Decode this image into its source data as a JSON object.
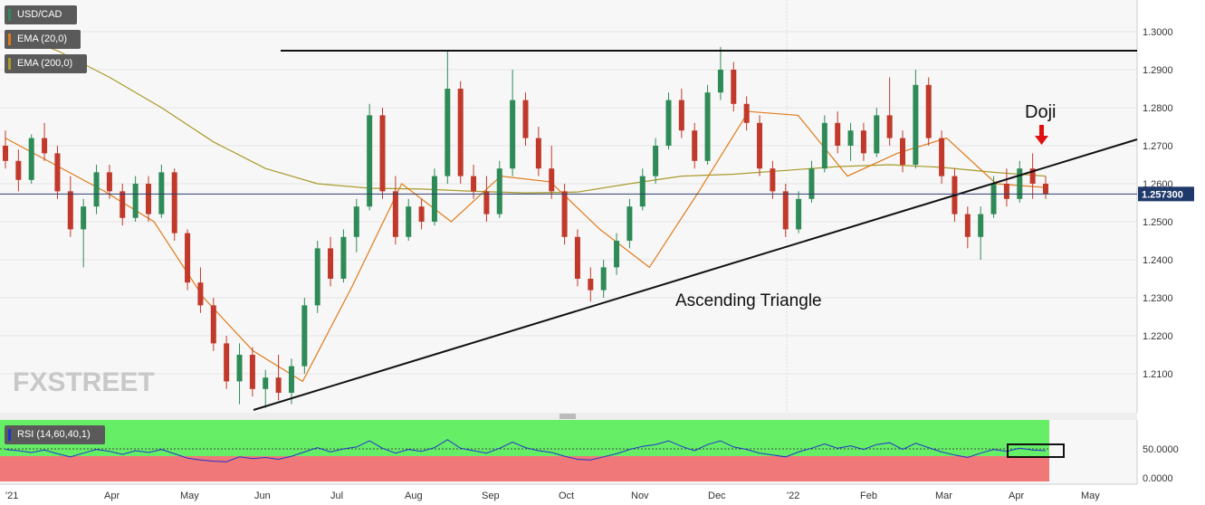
{
  "legend": {
    "symbol": "USD/CAD",
    "ema20": "EMA (20,0)",
    "ema200": "EMA (200,0)",
    "rsi": "RSI (14,60,40,1)"
  },
  "colors": {
    "up": "#2e8b57",
    "down": "#c0392b",
    "ema20": "#e07b1a",
    "ema200": "#a89b2a",
    "rsi_line": "#2233cc",
    "rsi_upper": "#66ee66",
    "rsi_lower": "#f07878",
    "arrow": "#e01010"
  },
  "logo": {
    "text": "FXSTREET"
  },
  "chart_data": {
    "type": "candlestick",
    "title": "USD/CAD",
    "y_ticks": [
      "1.3000",
      "1.2900",
      "1.2800",
      "1.2700",
      "1.2600",
      "1.2500",
      "1.2400",
      "1.2300",
      "1.2200",
      "1.2100"
    ],
    "ylim": [
      1.2,
      1.305
    ],
    "x_ticks": [
      "'21",
      "Apr",
      "May",
      "Jun",
      "Jul",
      "Aug",
      "Sep",
      "Oct",
      "Nov",
      "Dec",
      "'22",
      "Feb",
      "Mar",
      "Apr",
      "May"
    ],
    "current_price": "1.257300",
    "current_price_value": 1.2573,
    "resistance_level": 1.295,
    "support_line": {
      "start": [
        "Jun",
        1.201
      ],
      "end": [
        "May",
        1.272
      ]
    },
    "annotations": {
      "doji": "Doji",
      "pattern": "Ascending Triangle"
    },
    "ema200_values": [
      1.3,
      1.295,
      1.288,
      1.28,
      1.271,
      1.264,
      1.26,
      1.2588,
      1.2586,
      1.258,
      1.2576,
      1.2578,
      1.26,
      1.262,
      1.2625,
      1.2635,
      1.2645,
      1.265,
      1.2643,
      1.263,
      1.262
    ],
    "ema20_values": [
      1.272,
      1.265,
      1.258,
      1.25,
      1.23,
      1.216,
      1.208,
      1.233,
      1.26,
      1.25,
      1.262,
      1.2605,
      1.248,
      1.238,
      1.258,
      1.279,
      1.278,
      1.262,
      1.268,
      1.272,
      1.26,
      1.259
    ],
    "rsi": {
      "label": "RSI (14,60,40,1)",
      "upper": 60,
      "lower": 40,
      "y_ticks": [
        "50.0000",
        "0.0000"
      ],
      "last": 50
    },
    "candles": [
      [
        1.27,
        1.274,
        1.264,
        1.266
      ],
      [
        1.266,
        1.269,
        1.258,
        1.261
      ],
      [
        1.261,
        1.273,
        1.26,
        1.272
      ],
      [
        1.272,
        1.276,
        1.266,
        1.268
      ],
      [
        1.268,
        1.27,
        1.256,
        1.258
      ],
      [
        1.258,
        1.262,
        1.246,
        1.248
      ],
      [
        1.248,
        1.256,
        1.238,
        1.254
      ],
      [
        1.254,
        1.265,
        1.252,
        1.263
      ],
      [
        1.263,
        1.265,
        1.256,
        1.258
      ],
      [
        1.258,
        1.26,
        1.249,
        1.251
      ],
      [
        1.251,
        1.262,
        1.25,
        1.26
      ],
      [
        1.26,
        1.262,
        1.25,
        1.252
      ],
      [
        1.252,
        1.265,
        1.251,
        1.263
      ],
      [
        1.263,
        1.264,
        1.245,
        1.247
      ],
      [
        1.247,
        1.248,
        1.232,
        1.234
      ],
      [
        1.234,
        1.238,
        1.226,
        1.228
      ],
      [
        1.228,
        1.23,
        1.216,
        1.218
      ],
      [
        1.218,
        1.22,
        1.206,
        1.208
      ],
      [
        1.208,
        1.218,
        1.202,
        1.215
      ],
      [
        1.215,
        1.217,
        1.204,
        1.206
      ],
      [
        1.206,
        1.211,
        1.201,
        1.209
      ],
      [
        1.209,
        1.215,
        1.203,
        1.205
      ],
      [
        1.205,
        1.214,
        1.202,
        1.212
      ],
      [
        1.212,
        1.23,
        1.21,
        1.228
      ],
      [
        1.228,
        1.245,
        1.226,
        1.243
      ],
      [
        1.243,
        1.246,
        1.233,
        1.235
      ],
      [
        1.235,
        1.248,
        1.234,
        1.246
      ],
      [
        1.246,
        1.256,
        1.242,
        1.254
      ],
      [
        1.254,
        1.281,
        1.253,
        1.278
      ],
      [
        1.278,
        1.28,
        1.256,
        1.258
      ],
      [
        1.258,
        1.262,
        1.244,
        1.246
      ],
      [
        1.246,
        1.256,
        1.245,
        1.254
      ],
      [
        1.254,
        1.256,
        1.248,
        1.25
      ],
      [
        1.25,
        1.264,
        1.249,
        1.262
      ],
      [
        1.262,
        1.295,
        1.26,
        1.285
      ],
      [
        1.285,
        1.287,
        1.26,
        1.262
      ],
      [
        1.262,
        1.265,
        1.256,
        1.258
      ],
      [
        1.258,
        1.262,
        1.25,
        1.252
      ],
      [
        1.252,
        1.266,
        1.251,
        1.264
      ],
      [
        1.264,
        1.29,
        1.262,
        1.282
      ],
      [
        1.282,
        1.284,
        1.27,
        1.272
      ],
      [
        1.272,
        1.275,
        1.262,
        1.264
      ],
      [
        1.264,
        1.27,
        1.256,
        1.258
      ],
      [
        1.258,
        1.26,
        1.244,
        1.246
      ],
      [
        1.246,
        1.248,
        1.233,
        1.235
      ],
      [
        1.235,
        1.238,
        1.229,
        1.232
      ],
      [
        1.232,
        1.24,
        1.23,
        1.238
      ],
      [
        1.238,
        1.247,
        1.236,
        1.245
      ],
      [
        1.245,
        1.256,
        1.243,
        1.254
      ],
      [
        1.254,
        1.264,
        1.253,
        1.262
      ],
      [
        1.262,
        1.272,
        1.26,
        1.27
      ],
      [
        1.27,
        1.284,
        1.269,
        1.282
      ],
      [
        1.282,
        1.285,
        1.272,
        1.274
      ],
      [
        1.274,
        1.276,
        1.264,
        1.266
      ],
      [
        1.266,
        1.286,
        1.265,
        1.284
      ],
      [
        1.284,
        1.296,
        1.282,
        1.29
      ],
      [
        1.29,
        1.292,
        1.279,
        1.281
      ],
      [
        1.281,
        1.283,
        1.274,
        1.276
      ],
      [
        1.276,
        1.278,
        1.262,
        1.264
      ],
      [
        1.264,
        1.266,
        1.256,
        1.258
      ],
      [
        1.258,
        1.26,
        1.246,
        1.248
      ],
      [
        1.248,
        1.258,
        1.247,
        1.256
      ],
      [
        1.256,
        1.266,
        1.255,
        1.264
      ],
      [
        1.264,
        1.278,
        1.263,
        1.276
      ],
      [
        1.276,
        1.279,
        1.268,
        1.27
      ],
      [
        1.27,
        1.276,
        1.266,
        1.274
      ],
      [
        1.274,
        1.276,
        1.266,
        1.268
      ],
      [
        1.268,
        1.28,
        1.267,
        1.278
      ],
      [
        1.278,
        1.288,
        1.27,
        1.272
      ],
      [
        1.272,
        1.274,
        1.263,
        1.265
      ],
      [
        1.265,
        1.29,
        1.264,
        1.286
      ],
      [
        1.286,
        1.288,
        1.27,
        1.272
      ],
      [
        1.272,
        1.274,
        1.26,
        1.262
      ],
      [
        1.262,
        1.264,
        1.25,
        1.252
      ],
      [
        1.252,
        1.254,
        1.243,
        1.246
      ],
      [
        1.246,
        1.254,
        1.24,
        1.252
      ],
      [
        1.252,
        1.262,
        1.251,
        1.26
      ],
      [
        1.26,
        1.264,
        1.254,
        1.256
      ],
      [
        1.256,
        1.266,
        1.255,
        1.264
      ],
      [
        1.264,
        1.268,
        1.256,
        1.26
      ],
      [
        1.26,
        1.262,
        1.256,
        1.2573
      ]
    ],
    "rsi_values": [
      52,
      50,
      47,
      51,
      45,
      40,
      46,
      52,
      49,
      44,
      50,
      47,
      52,
      45,
      38,
      35,
      33,
      32,
      40,
      37,
      39,
      36,
      41,
      48,
      55,
      48,
      53,
      56,
      66,
      54,
      46,
      52,
      49,
      55,
      68,
      54,
      50,
      46,
      54,
      64,
      55,
      50,
      47,
      41,
      36,
      35,
      40,
      45,
      52,
      57,
      60,
      66,
      57,
      50,
      60,
      66,
      56,
      52,
      46,
      43,
      40,
      48,
      54,
      61,
      54,
      58,
      52,
      60,
      63,
      52,
      62,
      55,
      48,
      43,
      39,
      46,
      52,
      49,
      54,
      51,
      50
    ]
  }
}
